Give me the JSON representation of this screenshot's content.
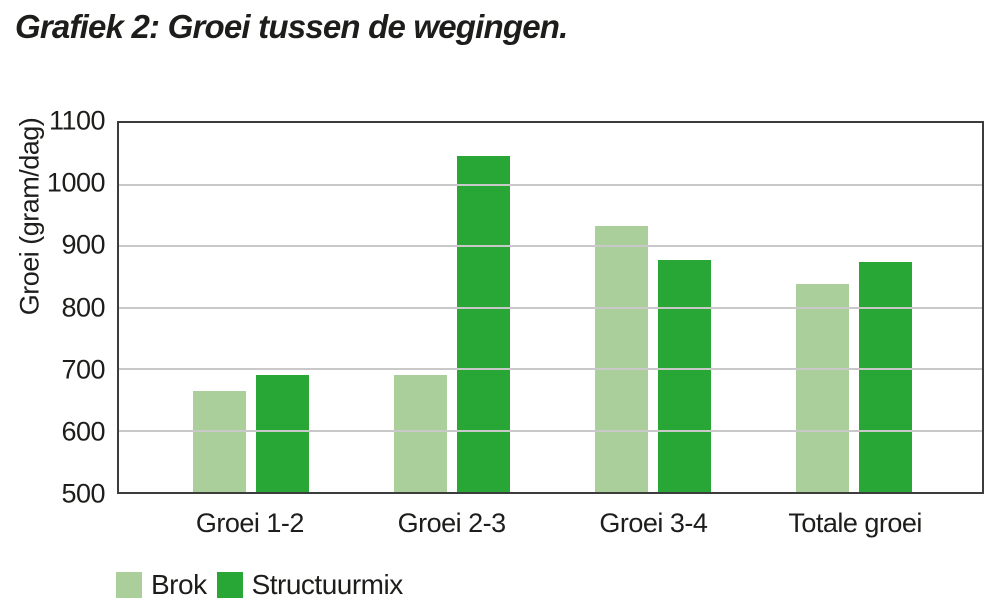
{
  "title": "Grafiek 2: Groei tussen de wegingen.",
  "chart_data": {
    "type": "bar",
    "title": "Grafiek 2: Groei tussen de wegingen.",
    "categories": [
      "Groei 1-2",
      "Groei 2-3",
      "Groei 3-4",
      "Totale groei"
    ],
    "series": [
      {
        "name": "Brok",
        "color": "#aacf9b",
        "values": [
          665,
          690,
          933,
          839
        ]
      },
      {
        "name": "Structuurmix",
        "color": "#28a737",
        "values": [
          690,
          1047,
          877,
          874
        ]
      }
    ],
    "xlabel": "",
    "ylabel": "Groei (gram/dag)",
    "ylim": [
      500,
      1100
    ],
    "yticks": [
      500,
      600,
      700,
      800,
      900,
      1000,
      1100
    ],
    "grid": true,
    "legend_position": "bottom-left"
  },
  "colors": {
    "axis_border": "#3c3c3c",
    "gridline": "#c9c9c9",
    "text": "#1d1d1b",
    "background": "#ffffff",
    "series_brok": "#aacf9b",
    "series_structuurmix": "#28a737"
  }
}
